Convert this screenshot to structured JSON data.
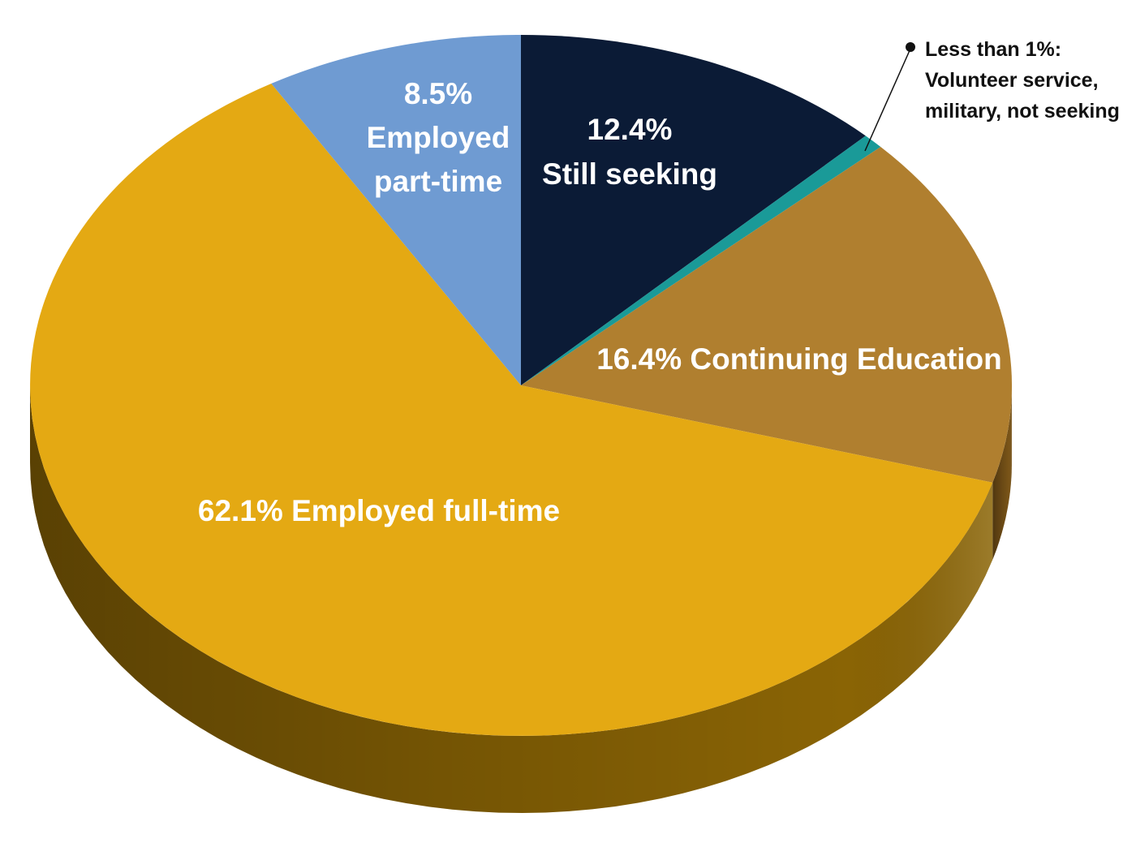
{
  "chart_data": {
    "type": "pie",
    "style": "3d-tilted",
    "start": "top",
    "direction": "clockwise",
    "slices": [
      {
        "key": "still_seeking",
        "value": 12.4,
        "color": "#0b1b36",
        "side_color": "#081428",
        "label_lines": [
          "12.4%",
          "Still seeking"
        ]
      },
      {
        "key": "less_than_1",
        "value": 0.7,
        "color": "#1a9a98",
        "side_color": "#127270",
        "label_lines": [
          "Less than 1%:",
          "Volunteer service,",
          "military, not seeking"
        ]
      },
      {
        "key": "continuing_education",
        "value": 16.4,
        "color": "#b07f2f",
        "side_color": "#7a5418",
        "label_lines": [
          "16.4% Continuing Education"
        ]
      },
      {
        "key": "employed_full_time",
        "value": 62.1,
        "color": "#e4a913",
        "side_color": "#8a6405",
        "label_lines": [
          "62.1% Employed full-time"
        ]
      },
      {
        "key": "employed_part_time",
        "value": 8.5,
        "color": "#6f9bd2",
        "side_color": "#4d74a6",
        "label_lines": [
          "8.5%",
          "Employed",
          "part-time"
        ]
      }
    ]
  }
}
